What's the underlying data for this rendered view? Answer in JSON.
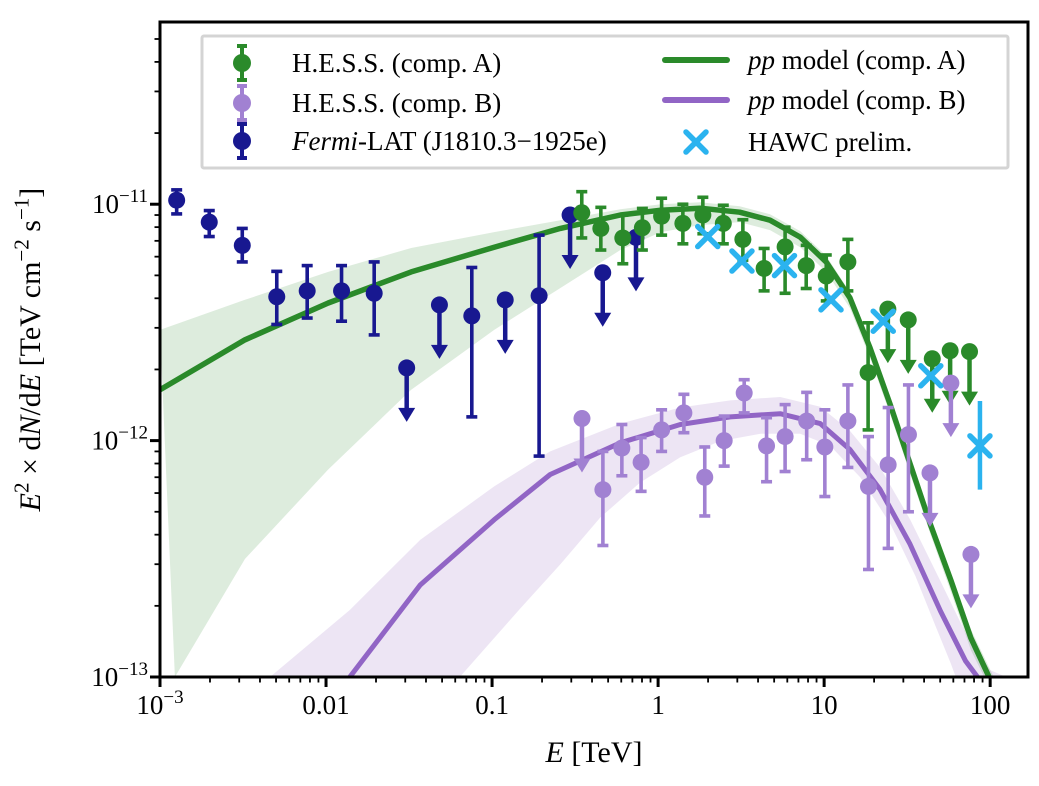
{
  "figure": {
    "background": "#ffffff"
  },
  "axes": {
    "xlabel_parts": [
      {
        "t": "E",
        "i": true
      },
      {
        "t": " [TeV]"
      }
    ],
    "ylabel_parts": [
      {
        "t": "E",
        "i": true
      },
      {
        "t": "2",
        "sup": true
      },
      {
        "t": " × d"
      },
      {
        "t": "N",
        "i": true
      },
      {
        "t": "/d"
      },
      {
        "t": "E",
        "i": true
      },
      {
        "t": " [TeV cm"
      },
      {
        "t": "−2",
        "sup": true
      },
      {
        "t": " s"
      },
      {
        "t": "−1",
        "sup": true
      },
      {
        "t": "]"
      }
    ],
    "xlim": [
      0.001,
      169
    ],
    "ylim": [
      1e-13,
      5.9e-11
    ],
    "xscale": "log",
    "yscale": "log",
    "x_ticks": [
      {
        "value": 0.001,
        "base": "10",
        "exp": "−3"
      },
      {
        "value": 0.01,
        "text": "0.01"
      },
      {
        "value": 0.1,
        "text": "0.1"
      },
      {
        "value": 1,
        "text": "1"
      },
      {
        "value": 10,
        "text": "10"
      },
      {
        "value": 100,
        "text": "100"
      }
    ],
    "y_ticks": [
      {
        "value": 1e-11,
        "base": "10",
        "exp": "−11"
      },
      {
        "value": 1e-12,
        "base": "10",
        "exp": "−12"
      },
      {
        "value": 1e-13,
        "base": "10",
        "exp": "−13"
      }
    ]
  },
  "colors": {
    "hess_a": "#2a8a2a",
    "hess_b_points": "#a181d2",
    "fermi": "#181890",
    "model_a": "#2a8a2a",
    "model_b": "#9165c5",
    "hawc": "#2bb3ef",
    "band_a": "rgba(44,138,44,0.16)",
    "band_b": "rgba(148,103,189,0.17)",
    "frame": "#000000",
    "legend_border": "#d4d4d4"
  },
  "chart_data": {
    "type": "scatter",
    "title": "",
    "xlabel": "E [TeV]",
    "ylabel": "E^2 × dN/dE [TeV cm^-2 s^-1]",
    "xscale": "log",
    "yscale": "log",
    "xlim": [
      0.001,
      169
    ],
    "ylim": [
      1e-13,
      5.9e-11
    ],
    "grid": false,
    "legend_position": "upper center",
    "series": [
      {
        "name": "H.E.S.S. (comp. A)",
        "kind": "errorbar",
        "points": [
          {
            "e": 0.347,
            "v": 9.2e-12,
            "lo": 7.2e-12,
            "hi": 1.13e-11
          },
          {
            "e": 0.452,
            "v": 7.9e-12,
            "lo": 6.4e-12,
            "hi": 9.7e-12
          },
          {
            "e": 0.613,
            "v": 7.2e-12,
            "lo": 5.6e-12,
            "hi": 9e-12
          },
          {
            "e": 0.804,
            "v": 7.95e-12,
            "lo": 6.4e-12,
            "hi": 9.6e-12
          },
          {
            "e": 1.05,
            "v": 8.9e-12,
            "lo": 7.4e-12,
            "hi": 1.06e-11
          },
          {
            "e": 1.41,
            "v": 8.3e-12,
            "lo": 6.8e-12,
            "hi": 1e-11
          },
          {
            "e": 1.86,
            "v": 9e-12,
            "lo": 7.5e-12,
            "hi": 1.07e-11
          },
          {
            "e": 2.47,
            "v": 8.3e-12,
            "lo": 6.8e-12,
            "hi": 9.9e-12
          },
          {
            "e": 3.24,
            "v": 7.1e-12,
            "lo": 5.8e-12,
            "hi": 8.6e-12
          },
          {
            "e": 4.35,
            "v": 5.35e-12,
            "lo": 4.3e-12,
            "hi": 6.5e-12
          },
          {
            "e": 5.82,
            "v": 6.6e-12,
            "lo": 4.2e-12,
            "hi": 8e-12
          },
          {
            "e": 7.8,
            "v": 5.5e-12,
            "lo": 4.4e-12,
            "hi": 6.7e-12
          },
          {
            "e": 10.3,
            "v": 4.97e-12,
            "lo": 3.9e-12,
            "hi": 6.1e-12
          },
          {
            "e": 13.9,
            "v": 5.7e-12,
            "lo": 4.3e-12,
            "hi": 7.1e-12
          },
          {
            "e": 18.4,
            "v": 1.94e-12,
            "lo": 1.11e-12,
            "hi": 3.15e-12
          },
          {
            "e": 24.2,
            "v": 3.6e-12,
            "ul": true
          },
          {
            "e": 32.1,
            "v": 3.24e-12,
            "ul": true
          },
          {
            "e": 44.8,
            "v": 2.22e-12,
            "ul": true
          },
          {
            "e": 57.4,
            "v": 2.4e-12,
            "ul": true
          },
          {
            "e": 75.1,
            "v": 2.38e-12,
            "ul": true
          }
        ]
      },
      {
        "name": "H.E.S.S. (comp. B)",
        "kind": "errorbar",
        "points": [
          {
            "e": 0.348,
            "v": 1.24e-12,
            "ul": true
          },
          {
            "e": 0.465,
            "v": 6.2e-13,
            "lo": 3.6e-13,
            "hi": 9e-13
          },
          {
            "e": 0.605,
            "v": 9.3e-13,
            "lo": 7.1e-13,
            "hi": 1.17e-12
          },
          {
            "e": 0.79,
            "v": 8.1e-13,
            "lo": 6.1e-13,
            "hi": 1.03e-12
          },
          {
            "e": 1.05,
            "v": 1.11e-12,
            "lo": 9e-13,
            "hi": 1.35e-12
          },
          {
            "e": 1.43,
            "v": 1.31e-12,
            "lo": 1.08e-12,
            "hi": 1.57e-12
          },
          {
            "e": 1.91,
            "v": 7e-13,
            "lo": 4.8e-13,
            "hi": 9.4e-13
          },
          {
            "e": 2.5,
            "v": 1e-12,
            "lo": 7.8e-13,
            "hi": 1.27e-12
          },
          {
            "e": 3.3,
            "v": 1.59e-12,
            "lo": 1.31e-12,
            "hi": 1.81e-12
          },
          {
            "e": 4.5,
            "v": 9.5e-13,
            "lo": 6.7e-13,
            "hi": 1.25e-12
          },
          {
            "e": 5.82,
            "v": 1.04e-12,
            "lo": 7.4e-13,
            "hi": 1.42e-12
          },
          {
            "e": 7.85,
            "v": 1.21e-12,
            "lo": 8.3e-13,
            "hi": 1.6e-12
          },
          {
            "e": 10.1,
            "v": 9.4e-13,
            "lo": 5.8e-13,
            "hi": 1.35e-12
          },
          {
            "e": 13.9,
            "v": 1.21e-12,
            "lo": 7.7e-13,
            "hi": 1.72e-12
          },
          {
            "e": 18.5,
            "v": 6.4e-13,
            "lo": 2.85e-13,
            "hi": 1.04e-12
          },
          {
            "e": 24.3,
            "v": 7.9e-13,
            "lo": 3.5e-13,
            "hi": 1.38e-12
          },
          {
            "e": 32.2,
            "v": 1.06e-12,
            "lo": 5e-13,
            "hi": 1.72e-12
          },
          {
            "e": 43.4,
            "v": 7.3e-13,
            "ul": true
          },
          {
            "e": 58,
            "v": 1.75e-12,
            "ul": true
          },
          {
            "e": 76.6,
            "v": 3.3e-13,
            "ul": true
          }
        ]
      },
      {
        "name": "Fermi-LAT (J1810.3−1925e)",
        "kind": "errorbar",
        "points": [
          {
            "e": 0.00126,
            "v": 1.04e-11,
            "lo": 9.1e-12,
            "hi": 1.15e-11
          },
          {
            "e": 0.00198,
            "v": 8.4e-12,
            "lo": 7.3e-12,
            "hi": 9.4e-12
          },
          {
            "e": 0.00313,
            "v": 6.7e-12,
            "lo": 5.7e-12,
            "hi": 7.9e-12
          },
          {
            "e": 0.00505,
            "v": 4.06e-12,
            "lo": 3.1e-12,
            "hi": 5.2e-12
          },
          {
            "e": 0.0077,
            "v": 4.3e-12,
            "lo": 3.3e-12,
            "hi": 5.5e-12
          },
          {
            "e": 0.0124,
            "v": 4.3e-12,
            "lo": 3.2e-12,
            "hi": 5.5e-12
          },
          {
            "e": 0.0195,
            "v": 4.2e-12,
            "lo": 2.8e-12,
            "hi": 5.7e-12
          },
          {
            "e": 0.0306,
            "v": 2.03e-12,
            "ul": true
          },
          {
            "e": 0.0482,
            "v": 3.75e-12,
            "ul": true
          },
          {
            "e": 0.0755,
            "v": 3.37e-12,
            "lo": 1.26e-12,
            "hi": 5.4e-12
          },
          {
            "e": 0.12,
            "v": 3.94e-12,
            "ul": true
          },
          {
            "e": 0.192,
            "v": 4.1e-12,
            "lo": 8.6e-13,
            "hi": 7.4e-12
          },
          {
            "e": 0.295,
            "v": 9e-12,
            "ul": true
          },
          {
            "e": 0.464,
            "v": 5.13e-12,
            "ul": true
          },
          {
            "e": 0.736,
            "v": 7.24e-12,
            "ul": true
          }
        ]
      },
      {
        "name": "HAWC prelim.",
        "kind": "xmarker",
        "points": [
          {
            "e": 1.99,
            "v": 7.3e-12
          },
          {
            "e": 3.2,
            "v": 5.75e-12
          },
          {
            "e": 5.77,
            "v": 5.5e-12
          },
          {
            "e": 11.0,
            "v": 3.94e-12
          },
          {
            "e": 22.7,
            "v": 3.2e-12
          },
          {
            "e": 43.9,
            "v": 1.88e-12
          },
          {
            "e": 86.8,
            "v": 9.5e-13,
            "lo": 6.2e-13,
            "hi": 1.47e-12
          }
        ]
      },
      {
        "name": "pp model (comp. A)",
        "kind": "line",
        "curve": [
          [
            0.001,
            1.64e-12
          ],
          [
            0.00325,
            2.67e-12
          ],
          [
            0.0103,
            3.82e-12
          ],
          [
            0.0326,
            5.17e-12
          ],
          [
            0.103,
            6.58e-12
          ],
          [
            0.258,
            7.9e-12
          ],
          [
            0.593,
            9e-12
          ],
          [
            1.04,
            9.43e-12
          ],
          [
            1.79,
            9.62e-12
          ],
          [
            3.1,
            9.25e-12
          ],
          [
            4.72,
            8.56e-12
          ],
          [
            7.18,
            7.26e-12
          ],
          [
            10.3,
            5.69e-12
          ],
          [
            14.3,
            4.02e-12
          ],
          [
            18.9,
            2.47e-12
          ],
          [
            25,
            1.42e-12
          ],
          [
            33.1,
            7.9e-13
          ],
          [
            43.8,
            4.4e-13
          ],
          [
            57.9,
            2.57e-13
          ],
          [
            76.6,
            1.46e-13
          ],
          [
            98.6,
            1e-13
          ]
        ],
        "band_top": [
          [
            0.001,
            2.94e-12
          ],
          [
            0.00325,
            3.94e-12
          ],
          [
            0.0103,
            5.17e-12
          ],
          [
            0.0326,
            6.53e-12
          ],
          [
            0.103,
            7.62e-12
          ],
          [
            0.258,
            8.56e-12
          ],
          [
            0.593,
            9.53e-12
          ],
          [
            1.04,
            1e-11
          ],
          [
            1.79,
            1.02e-11
          ],
          [
            3.1,
            9.81e-12
          ],
          [
            4.72,
            9.07e-12
          ],
          [
            7.18,
            7.7e-12
          ],
          [
            10.3,
            6.04e-12
          ],
          [
            14.3,
            4.25e-12
          ],
          [
            18.9,
            2.62e-12
          ],
          [
            25,
            1.5e-12
          ],
          [
            33.1,
            8.4e-13
          ],
          [
            43.8,
            4.7e-13
          ],
          [
            57.9,
            2.73e-13
          ],
          [
            76.6,
            1.59e-13
          ],
          [
            105,
            1e-13
          ]
        ],
        "band_bottom": [
          [
            0.00123,
            1e-13
          ],
          [
            0.00325,
            3.16e-13
          ],
          [
            0.0103,
            7.55e-13
          ],
          [
            0.0326,
            1.64e-12
          ],
          [
            0.103,
            2.94e-12
          ],
          [
            0.258,
            4.42e-12
          ],
          [
            0.593,
            6.4e-12
          ],
          [
            1.04,
            7.62e-12
          ],
          [
            1.79,
            8.16e-12
          ],
          [
            3.1,
            8.4e-12
          ],
          [
            4.72,
            7.77e-12
          ],
          [
            7.18,
            6.58e-12
          ],
          [
            10.3,
            5.17e-12
          ],
          [
            14.3,
            3.64e-12
          ],
          [
            18.9,
            2.24e-12
          ],
          [
            25,
            1.29e-12
          ],
          [
            33.1,
            7.17e-13
          ],
          [
            43.8,
            4e-13
          ],
          [
            57.9,
            2.3e-13
          ],
          [
            76.6,
            1.3e-13
          ],
          [
            92,
            1e-13
          ]
        ]
      },
      {
        "name": "pp model (comp. B)",
        "kind": "line",
        "curve": [
          [
            0.0139,
            1e-13
          ],
          [
            0.0369,
            2.45e-13
          ],
          [
            0.103,
            4.63e-13
          ],
          [
            0.224,
            7.19e-13
          ],
          [
            0.593,
            9.79e-13
          ],
          [
            1.36,
            1.17e-12
          ],
          [
            2.72,
            1.26e-12
          ],
          [
            5.44,
            1.3e-12
          ],
          [
            9.48,
            1.18e-12
          ],
          [
            14.3,
            9.17e-13
          ],
          [
            21.7,
            6.22e-13
          ],
          [
            32.9,
            3.65e-13
          ],
          [
            50.2,
            1.9e-13
          ],
          [
            71,
            1.17e-13
          ],
          [
            83.9,
            1e-13
          ]
        ],
        "band_top": [
          [
            0.0046,
            1e-13
          ],
          [
            0.0139,
            1.92e-13
          ],
          [
            0.0369,
            3.8e-13
          ],
          [
            0.103,
            6.4e-13
          ],
          [
            0.224,
            9e-13
          ],
          [
            0.593,
            1.18e-12
          ],
          [
            1.36,
            1.38e-12
          ],
          [
            2.72,
            1.48e-12
          ],
          [
            5.44,
            1.53e-12
          ],
          [
            9.48,
            1.39e-12
          ],
          [
            14.3,
            1.1e-12
          ],
          [
            21.7,
            7.7e-13
          ],
          [
            32.9,
            4.65e-13
          ],
          [
            50.2,
            2.54e-13
          ],
          [
            71,
            1.54e-13
          ],
          [
            100,
            1.07e-13
          ],
          [
            125,
            1e-13
          ]
        ],
        "band_bottom": [
          [
            0.0639,
            1e-13
          ],
          [
            0.147,
            1.94e-13
          ],
          [
            0.258,
            3e-13
          ],
          [
            0.45,
            4.74e-13
          ],
          [
            0.78,
            6.65e-13
          ],
          [
            1.36,
            8.5e-13
          ],
          [
            2.37,
            9.95e-13
          ],
          [
            4.14,
            1.07e-12
          ],
          [
            7.18,
            1.07e-12
          ],
          [
            10.9,
            9.5e-13
          ],
          [
            16.5,
            7e-13
          ],
          [
            25.1,
            4.43e-13
          ],
          [
            35.5,
            2.67e-13
          ],
          [
            46.9,
            1.64e-13
          ],
          [
            57.9,
            1.14e-13
          ],
          [
            62.1,
            1e-13
          ]
        ]
      }
    ],
    "legend": {
      "left_entries": [
        {
          "marker": "dot-errorbar",
          "color": "#2a8a2a",
          "label_parts": [
            {
              "t": "H.E.S.S. (comp. A)"
            }
          ]
        },
        {
          "marker": "dot-errorbar",
          "color": "#a181d2",
          "label_parts": [
            {
              "t": "H.E.S.S. (comp. B)"
            }
          ]
        },
        {
          "marker": "dot-errorbar",
          "color": "#181890",
          "label_parts": [
            {
              "t": "Fermi",
              "i": true
            },
            {
              "t": "-LAT (J1810.3−1925e)"
            }
          ]
        }
      ],
      "right_entries": [
        {
          "marker": "line",
          "color": "#2a8a2a",
          "label_parts": [
            {
              "t": "pp",
              "i": true
            },
            {
              "t": " model (comp. A)"
            }
          ]
        },
        {
          "marker": "line",
          "color": "#9165c5",
          "label_parts": [
            {
              "t": "pp",
              "i": true
            },
            {
              "t": " model (comp. B)"
            }
          ]
        },
        {
          "marker": "x",
          "color": "#2bb3ef",
          "label_parts": [
            {
              "t": "HAWC prelim."
            }
          ]
        }
      ]
    }
  }
}
